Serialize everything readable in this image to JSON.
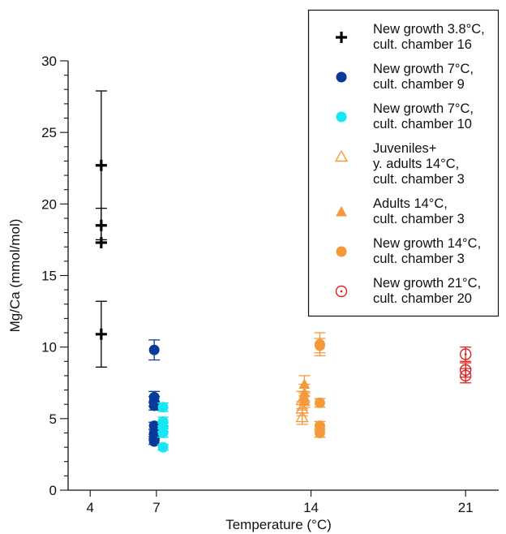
{
  "chart_data": {
    "type": "scatter",
    "xlabel": "Temperature (°C)",
    "ylabel": "Mg/Ca (mmol/mol)",
    "xlim": [
      3,
      22.5
    ],
    "ylim": [
      0,
      30
    ],
    "x_ticks": [
      "4",
      "7",
      "14",
      "21"
    ],
    "y_ticks": [
      "0",
      "5",
      "10",
      "15",
      "20",
      "25",
      "30"
    ],
    "y_minor_step": 1,
    "grid": false,
    "legend_position": "top-right",
    "series": [
      {
        "name_lines": [
          "New growth 3.8°C,",
          "cult. chamber 16"
        ],
        "marker": "plus",
        "color": "#000000",
        "points": [
          {
            "x": 4.5,
            "y": 22.7,
            "err": 5.2
          },
          {
            "x": 4.5,
            "y": 18.5,
            "err": 1.2
          },
          {
            "x": 4.5,
            "y": 17.3,
            "err": 0.0
          },
          {
            "x": 4.5,
            "y": 10.9,
            "err": 2.3
          }
        ]
      },
      {
        "name_lines": [
          "New growth 7°C,",
          "cult. chamber 9"
        ],
        "marker": "circle",
        "color": "#0a3a99",
        "points": [
          {
            "x": 6.9,
            "y": 9.8,
            "err": 0.7
          },
          {
            "x": 6.9,
            "y": 6.5,
            "err": 0.4
          },
          {
            "x": 6.9,
            "y": 6.2,
            "err": 0.35
          },
          {
            "x": 6.9,
            "y": 5.9,
            "err": 0.3
          },
          {
            "x": 6.9,
            "y": 4.5,
            "err": 0.25
          },
          {
            "x": 6.9,
            "y": 4.0,
            "err": 0.25
          },
          {
            "x": 6.9,
            "y": 3.7,
            "err": 0.2
          },
          {
            "x": 6.9,
            "y": 3.4,
            "err": 0.2
          }
        ]
      },
      {
        "name_lines": [
          "New growth 7°C,",
          "cult. chamber 10"
        ],
        "marker": "circle",
        "color": "#18e6f2",
        "points": [
          {
            "x": 7.3,
            "y": 5.8,
            "err": 0.3
          },
          {
            "x": 7.3,
            "y": 4.8,
            "err": 0.3
          },
          {
            "x": 7.3,
            "y": 4.4,
            "err": 0.3
          },
          {
            "x": 7.3,
            "y": 4.0,
            "err": 0.3
          },
          {
            "x": 7.3,
            "y": 3.0,
            "err": 0.2
          }
        ]
      },
      {
        "name_lines": [
          "Juveniles+",
          "y. adults  14°C,",
          "cult. chamber 3"
        ],
        "marker": "triangle-open",
        "color": "#f59a3c",
        "points": [
          {
            "x": 13.6,
            "y": 6.3,
            "err": 0.6
          },
          {
            "x": 13.6,
            "y": 5.7,
            "err": 0.5
          },
          {
            "x": 13.6,
            "y": 5.1,
            "err": 0.5
          }
        ]
      },
      {
        "name_lines": [
          "Adults 14°C,",
          "cult. chamber 3"
        ],
        "marker": "triangle",
        "color": "#f59a3c",
        "points": [
          {
            "x": 13.7,
            "y": 7.4,
            "err": 0.6
          },
          {
            "x": 13.7,
            "y": 6.8,
            "err": 0.6
          },
          {
            "x": 13.7,
            "y": 6.5,
            "err": 0.4
          },
          {
            "x": 13.7,
            "y": 6.2,
            "err": 0.4
          }
        ]
      },
      {
        "name_lines": [
          "New growth 14°C,",
          "cult. chamber 3"
        ],
        "marker": "circle",
        "color": "#f59a3c",
        "points": [
          {
            "x": 14.4,
            "y": 10.2,
            "err": 0.8
          },
          {
            "x": 14.4,
            "y": 10.1,
            "err": 0.5
          },
          {
            "x": 14.4,
            "y": 6.1,
            "err": 0.3
          },
          {
            "x": 14.4,
            "y": 4.5,
            "err": 0.3
          },
          {
            "x": 14.4,
            "y": 4.0,
            "err": 0.3
          }
        ]
      },
      {
        "name_lines": [
          "New growth 21°C,",
          "cult. chamber 20"
        ],
        "marker": "circle-dot",
        "color": "#e02020",
        "points": [
          {
            "x": 21.0,
            "y": 9.5,
            "err": 0.5
          },
          {
            "x": 21.0,
            "y": 8.4,
            "err": 0.5
          },
          {
            "x": 21.0,
            "y": 8.0,
            "err": 0.5
          }
        ]
      }
    ]
  }
}
